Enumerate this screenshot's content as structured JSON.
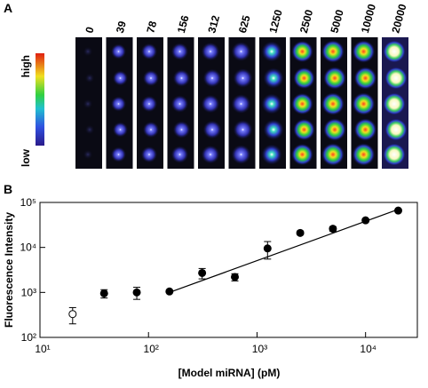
{
  "panel_a": {
    "label": "A",
    "high": "high",
    "low": "low",
    "columns": [
      "0",
      "39",
      "78",
      "156",
      "312",
      "625",
      "1250",
      "2500",
      "5000",
      "10000",
      "20000"
    ]
  },
  "chart_data": {
    "type": "scatter",
    "panel_label": "B",
    "x_label": "[Model miRNA] (pM)",
    "y_label": "Fluorescence Intensity",
    "log_x": true,
    "log_y": true,
    "x": [
      20,
      39,
      78,
      156,
      312,
      625,
      1250,
      2500,
      5000,
      10000,
      20000
    ],
    "values": [
      330,
      950,
      1000,
      1050,
      2700,
      2200,
      9500,
      21000,
      26000,
      40000,
      66000
    ],
    "errors": [
      130,
      200,
      300,
      50,
      700,
      400,
      4000,
      2000,
      3000,
      3000,
      4000
    ],
    "filled": [
      false,
      true,
      true,
      true,
      true,
      true,
      true,
      true,
      true,
      true,
      true
    ],
    "color": "#000000",
    "fit": {
      "x": [
        156,
        20000
      ],
      "y": [
        1000,
        70000
      ]
    },
    "xlim": [
      10,
      30000
    ],
    "ylim": [
      100,
      100000
    ],
    "xticks": [
      {
        "value": 10,
        "label": "10¹"
      },
      {
        "value": 100,
        "label": "10²"
      },
      {
        "value": 1000,
        "label": "10³"
      },
      {
        "value": 10000,
        "label": "10⁴"
      }
    ],
    "yticks": [
      {
        "value": 100,
        "label": "10²"
      },
      {
        "value": 1000,
        "label": "10³"
      },
      {
        "value": 10000,
        "label": "10⁴"
      },
      {
        "value": 100000,
        "label": "10⁵"
      }
    ]
  }
}
